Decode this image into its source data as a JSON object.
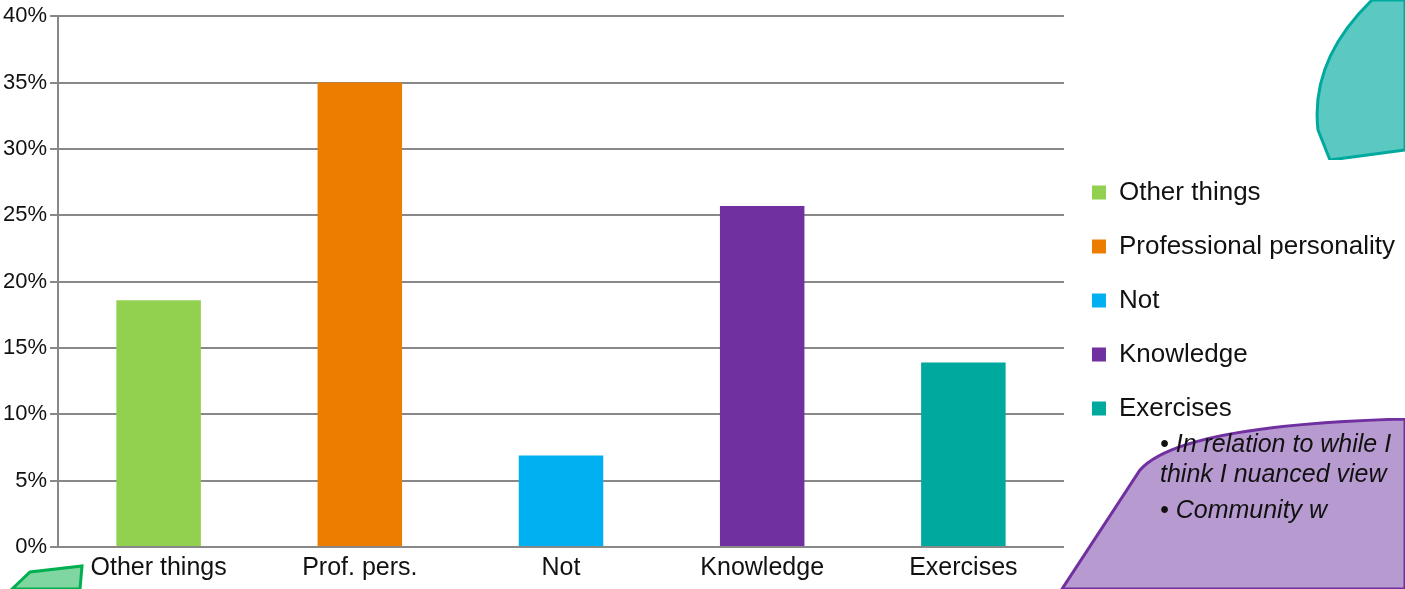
{
  "chart_data": {
    "type": "bar",
    "categories": [
      "Other things",
      "Prof. pers.",
      "Not",
      "Knowledge",
      "Exercises"
    ],
    "series": [
      {
        "name": "Other things",
        "color": "#92d050",
        "values": [
          18.6,
          null,
          null,
          null,
          null
        ]
      },
      {
        "name": "Professional personality",
        "color": "#ed7d00",
        "values": [
          null,
          35,
          null,
          null,
          null
        ]
      },
      {
        "name": "Not",
        "color": "#00b0f0",
        "values": [
          null,
          null,
          6.9,
          null,
          null
        ]
      },
      {
        "name": "Knowledge",
        "color": "#7030a0",
        "values": [
          null,
          null,
          null,
          25.7,
          null
        ]
      },
      {
        "name": "Exercises",
        "color": "#00a99d",
        "values": [
          null,
          null,
          null,
          null,
          13.9
        ]
      }
    ],
    "ylim": [
      0,
      40
    ],
    "yticks": [
      {
        "value": 0,
        "label": "0%"
      },
      {
        "value": 5,
        "label": "5%"
      },
      {
        "value": 10,
        "label": "10%"
      },
      {
        "value": 15,
        "label": "15%"
      },
      {
        "value": 20,
        "label": "20%"
      },
      {
        "value": 25,
        "label": "25%"
      },
      {
        "value": 30,
        "label": "30%"
      },
      {
        "value": 35,
        "label": "35%"
      },
      {
        "value": 40,
        "label": "40%"
      }
    ],
    "grid": "y",
    "legend": "right",
    "annotations": [
      "• In relation to while I think I nuanced view",
      "• Community w"
    ]
  }
}
